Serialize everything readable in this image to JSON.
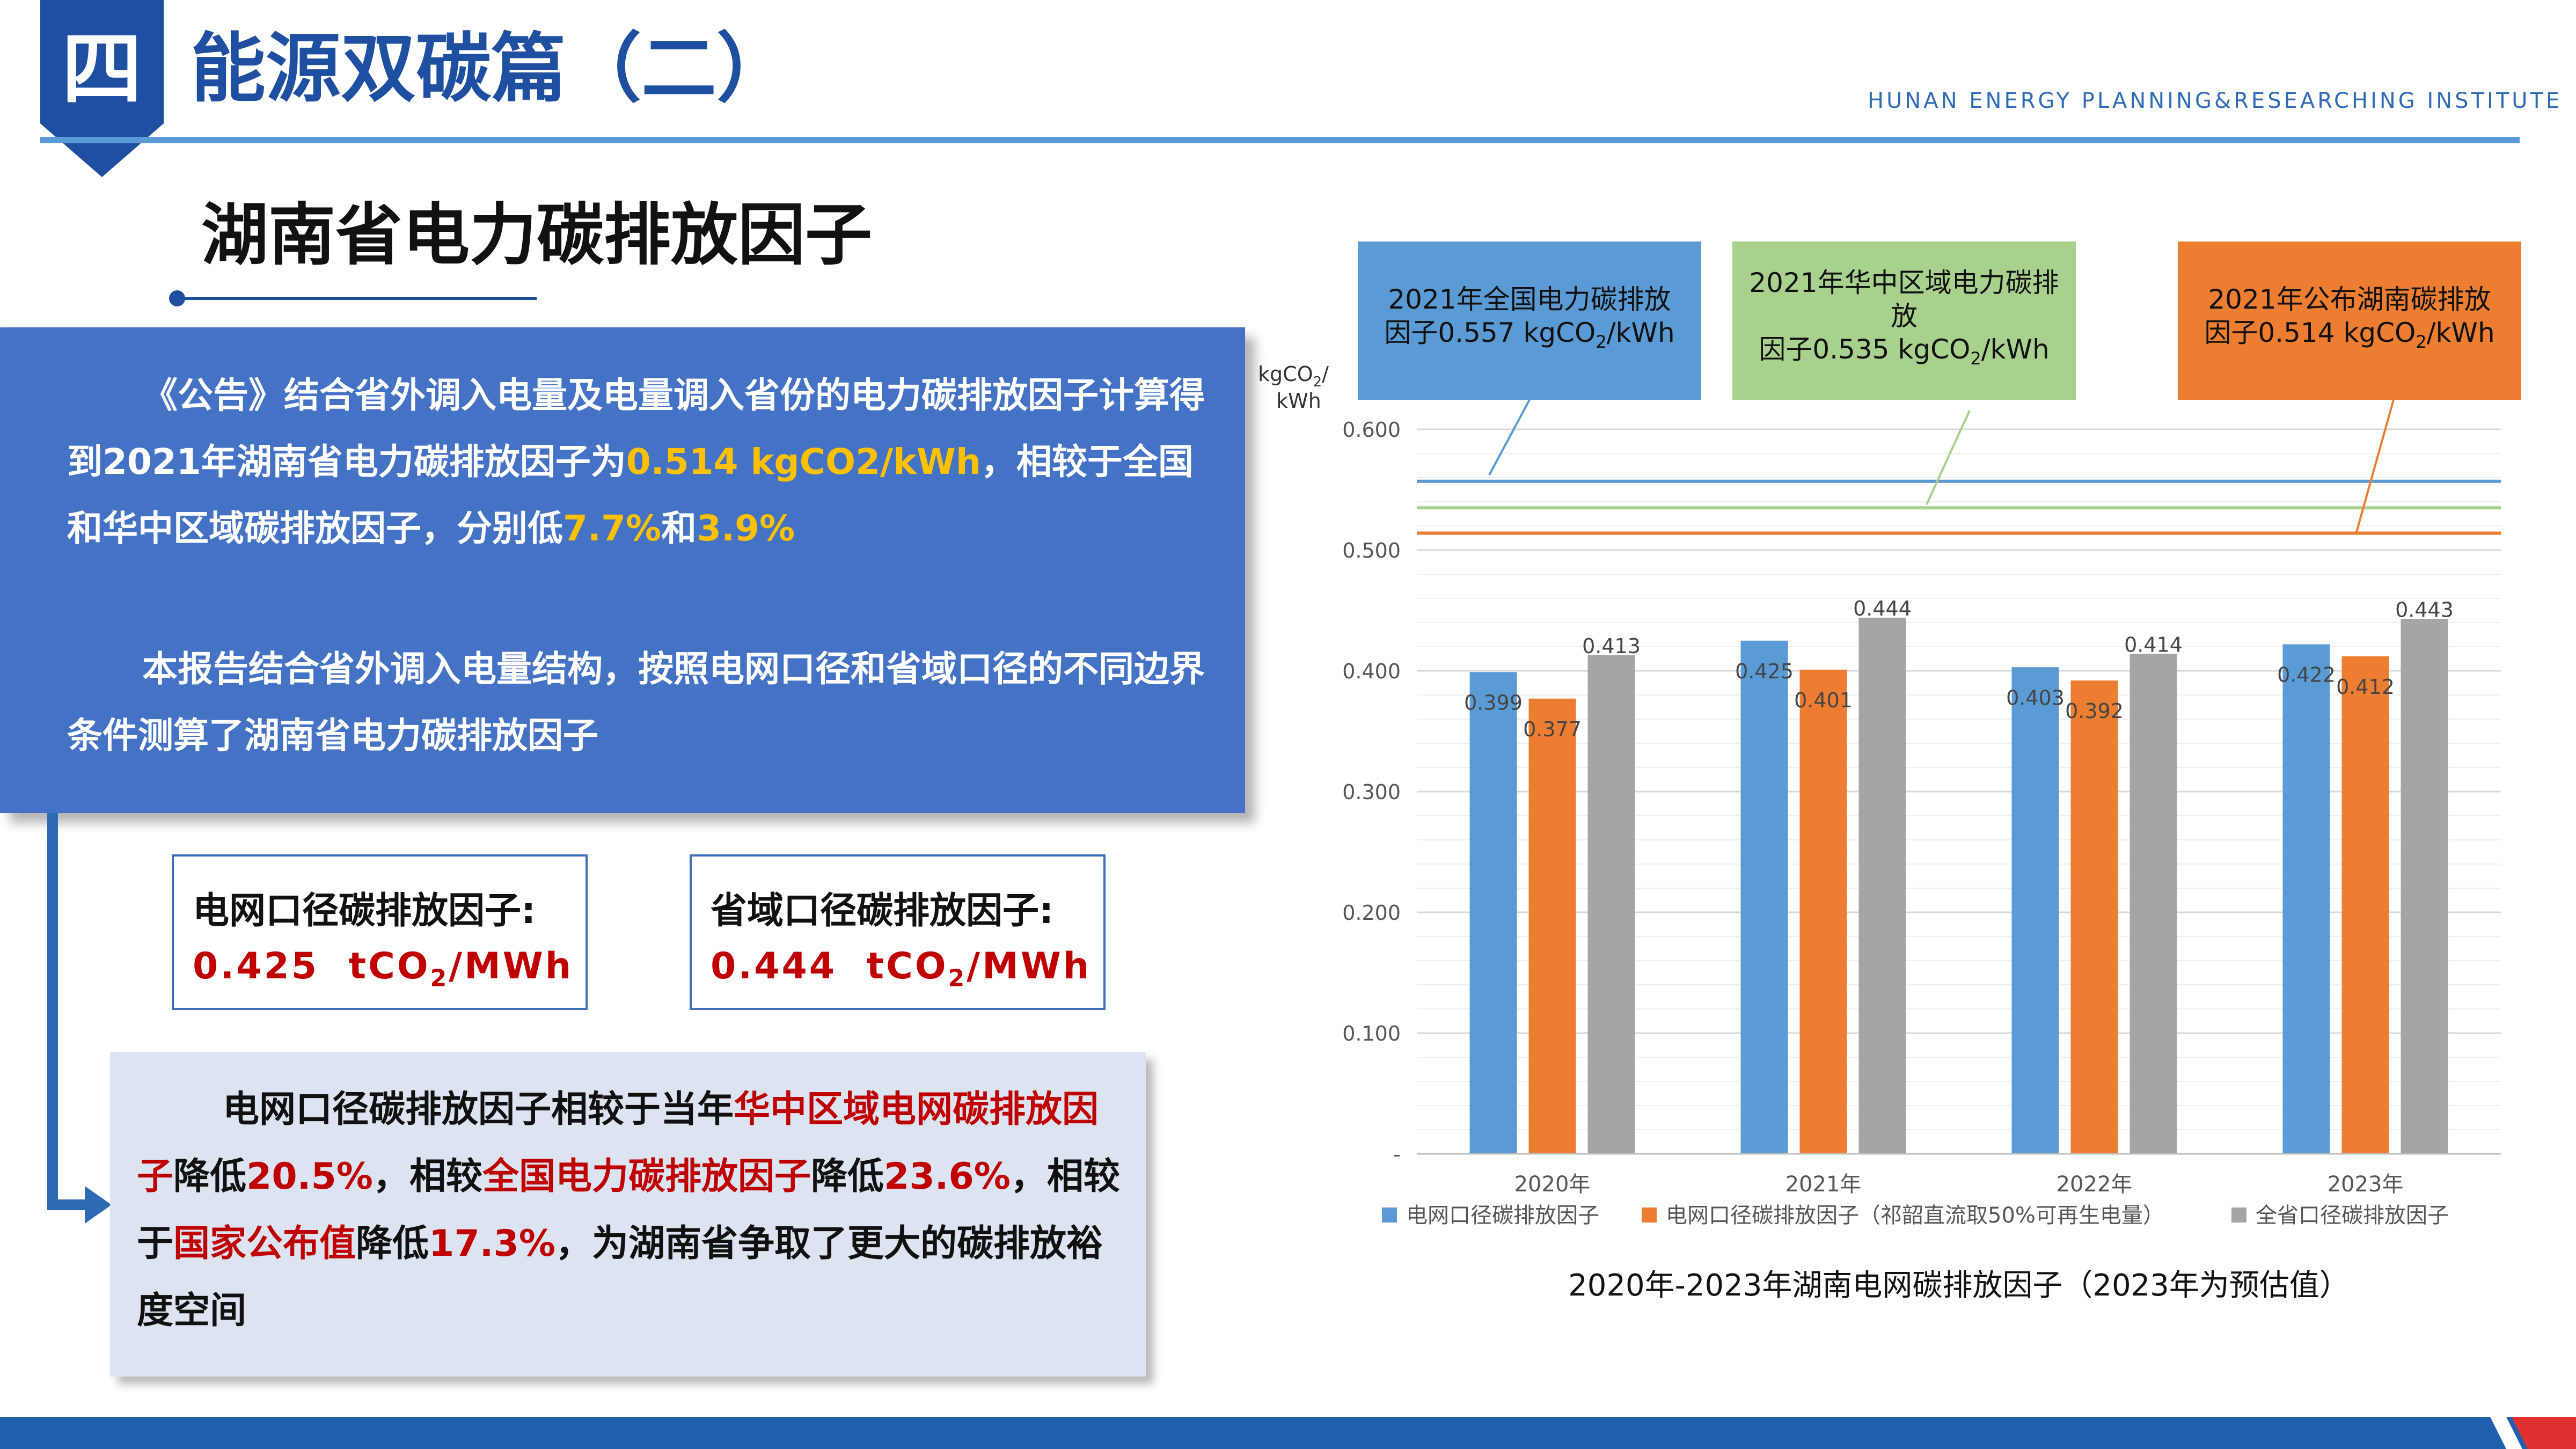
{
  "header": {
    "section_number": "四",
    "section_title": "能源双碳篇（二）",
    "institute": "HUNAN ENERGY PLANNING&RESEARCHING INSTITUTE"
  },
  "page_heading": "湖南省电力碳排放因子",
  "blue_box": {
    "para1_a": "《公告》结合省外调入电量及电量调入省份的电力碳排放因子计算得到2021年湖南省电力碳排放因子为",
    "para1_value": "0.514 kgCO2/kWh",
    "para1_b": "，相较于全国和华中区域碳排放因子，分别低",
    "para1_p1": "7.7%",
    "para1_and": "和",
    "para1_p2": "3.9%",
    "para2": "本报告结合省外调入电量结构，按照电网口径和省域口径的不同边界条件测算了湖南省电力碳排放因子"
  },
  "factor_grid": {
    "label": "电网口径碳排放因子:",
    "value": "0.425",
    "unit_pre": "tCO",
    "unit_sub": "2",
    "unit_post": "/MWh"
  },
  "factor_province": {
    "label": "省域口径碳排放因子:",
    "value": "0.444",
    "unit_pre": "tCO",
    "unit_sub": "2",
    "unit_post": "/MWh"
  },
  "light_box": {
    "t1": "电网口径碳排放因子相较于当年",
    "r1": "华中区域电网碳排放因子",
    "t2": "降低",
    "p1": "20.5%",
    "t3": "，相较",
    "r2": "全国电力碳排放因子",
    "t4": "降低",
    "p2": "23.6%",
    "t5": "，相较于",
    "r3": "国家公布值",
    "t6": "降低",
    "p3": "17.3%",
    "t7": "，为湖南省争取了更大的碳排放裕度空间"
  },
  "callouts": {
    "national_l1": "2021年全国电力碳排放",
    "national_l2a": "因子0.557 kgCO",
    "national_l2b": "/kWh",
    "central_l1": "2021年华中区域电力碳排放",
    "central_l2a": "因子0.535  kgCO",
    "central_l2b": "/kWh",
    "hunan_l1": "2021年公布湖南碳排放",
    "hunan_l2a": "因子0.514  kgCO",
    "hunan_l2b": "/kWh",
    "sub2": "2"
  },
  "chart_data": {
    "type": "bar",
    "title": "2020年-2023年湖南电网碳排放因子（2023年为预估值）",
    "ylabel_line1": "kgCO",
    "ylabel_sub": "2",
    "ylabel_slash": "/",
    "ylabel_line2": "kWh",
    "ylim": [
      0,
      0.6
    ],
    "yticks": [
      {
        "value": 0,
        "label": "-"
      },
      {
        "value": 0.1,
        "label": "0.100"
      },
      {
        "value": 0.2,
        "label": "0.200"
      },
      {
        "value": 0.3,
        "label": "0.300"
      },
      {
        "value": 0.4,
        "label": "0.400"
      },
      {
        "value": 0.5,
        "label": "0.500"
      },
      {
        "value": 0.6,
        "label": "0.600"
      }
    ],
    "categories": [
      "2020年",
      "2021年",
      "2022年",
      "2023年"
    ],
    "series": [
      {
        "name": "电网口径碳排放因子",
        "color": "#5b9bd5",
        "values": [
          0.399,
          0.425,
          0.403,
          0.422
        ],
        "labels": [
          "0.399",
          "0.425",
          "0.403",
          "0.422"
        ]
      },
      {
        "name": "电网口径碳排放因子（祁韶直流取50%可再生电量）",
        "color": "#ed7d31",
        "values": [
          0.377,
          0.401,
          0.392,
          0.412
        ],
        "labels": [
          "0.377",
          "0.401",
          "0.392",
          "0.412"
        ]
      },
      {
        "name": "全省口径碳排放因子",
        "color": "#a5a5a5",
        "values": [
          0.413,
          0.444,
          0.414,
          0.443
        ],
        "labels": [
          "0.413",
          "0.444",
          "0.414",
          "0.443"
        ]
      }
    ],
    "reference_lines": [
      {
        "value": 0.557,
        "color": "#5b9bd5"
      },
      {
        "value": 0.535,
        "color": "#a9d18e"
      },
      {
        "value": 0.514,
        "color": "#ed7d31"
      }
    ],
    "grid": true,
    "legend_position": "bottom"
  }
}
